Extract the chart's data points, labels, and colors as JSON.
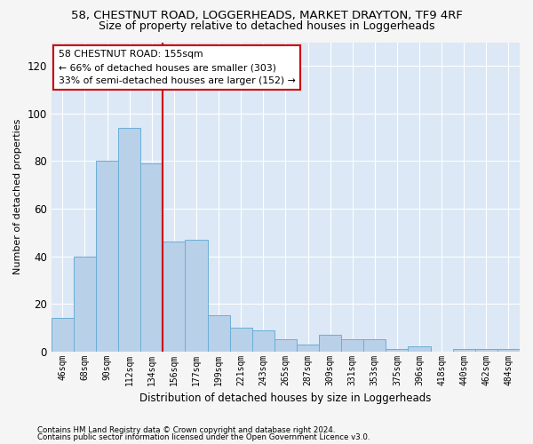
{
  "title": "58, CHESTNUT ROAD, LOGGERHEADS, MARKET DRAYTON, TF9 4RF",
  "subtitle": "Size of property relative to detached houses in Loggerheads",
  "xlabel": "Distribution of detached houses by size in Loggerheads",
  "ylabel": "Number of detached properties",
  "categories": [
    "46sqm",
    "68sqm",
    "90sqm",
    "112sqm",
    "134sqm",
    "156sqm",
    "177sqm",
    "199sqm",
    "221sqm",
    "243sqm",
    "265sqm",
    "287sqm",
    "309sqm",
    "331sqm",
    "353sqm",
    "375sqm",
    "396sqm",
    "418sqm",
    "440sqm",
    "462sqm",
    "484sqm"
  ],
  "values": [
    14,
    40,
    80,
    94,
    79,
    46,
    47,
    15,
    10,
    9,
    5,
    3,
    7,
    5,
    5,
    1,
    2,
    0,
    1,
    1,
    1
  ],
  "bar_color": "#b8d0e8",
  "bar_edge_color": "#6baed6",
  "marker_index": 5,
  "marker_color": "#cc0000",
  "ylim": [
    0,
    130
  ],
  "yticks": [
    0,
    20,
    40,
    60,
    80,
    100,
    120
  ],
  "annotation_title": "58 CHESTNUT ROAD: 155sqm",
  "annotation_line2": "← 66% of detached houses are smaller (303)",
  "annotation_line3": "33% of semi-detached houses are larger (152) →",
  "annotation_box_color": "#ffffff",
  "annotation_box_edge": "#cc0000",
  "footer_line1": "Contains HM Land Registry data © Crown copyright and database right 2024.",
  "footer_line2": "Contains public sector information licensed under the Open Government Licence v3.0.",
  "background_color": "#dce8f5",
  "grid_color": "#ffffff",
  "fig_background": "#f5f5f5",
  "title_fontsize": 9.5,
  "subtitle_fontsize": 9
}
